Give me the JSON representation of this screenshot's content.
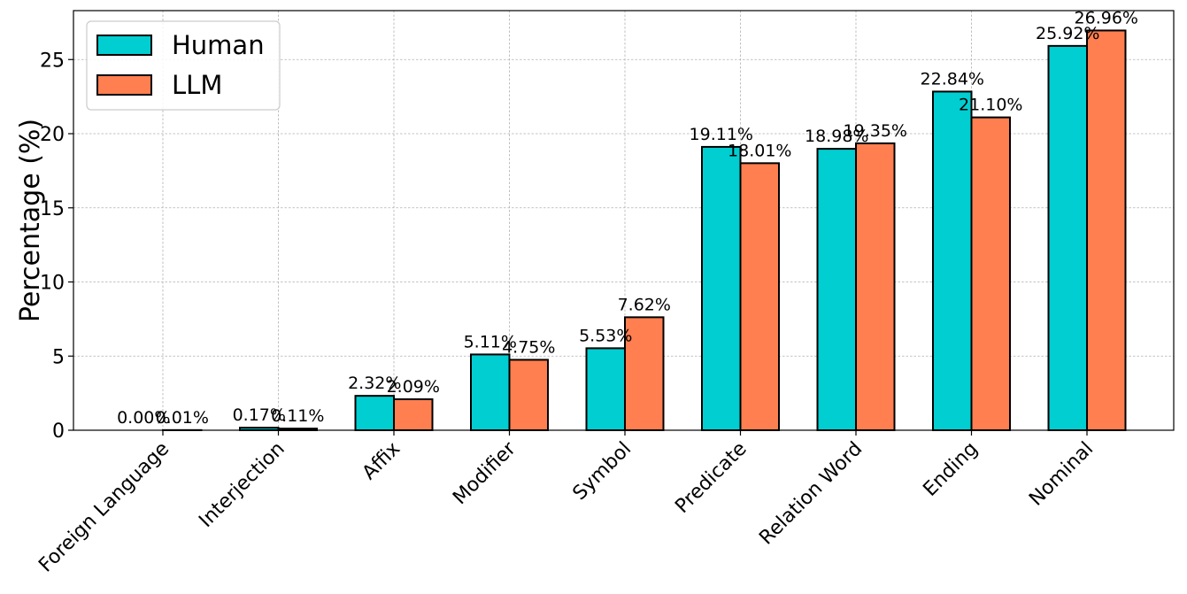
{
  "chart_data": {
    "type": "bar",
    "title": "",
    "xlabel": "",
    "ylabel": "Percentage (%)",
    "ylim": [
      0,
      28.3
    ],
    "yticks": [
      0,
      5,
      10,
      15,
      20,
      25
    ],
    "grid": true,
    "legend_position": "top-left",
    "categories": [
      "Foreign Language",
      "Interjection",
      "Affix",
      "Modifier",
      "Symbol",
      "Predicate",
      "Relation Word",
      "Ending",
      "Nominal"
    ],
    "series": [
      {
        "name": "Human",
        "color": "#00CED1",
        "values": [
          0.0,
          0.17,
          2.32,
          5.11,
          5.53,
          19.11,
          18.98,
          22.84,
          25.92
        ],
        "labels": [
          "0.00%",
          "0.17%",
          "2.32%",
          "5.11%",
          "5.53%",
          "19.11%",
          "18.98%",
          "22.84%",
          "25.92%"
        ]
      },
      {
        "name": "LLM",
        "color": "#FF7F50",
        "values": [
          0.01,
          0.11,
          2.09,
          4.75,
          7.62,
          18.01,
          19.35,
          21.1,
          26.96
        ],
        "labels": [
          "0.01%",
          "0.11%",
          "2.09%",
          "4.75%",
          "7.62%",
          "18.01%",
          "19.35%",
          "21.10%",
          "26.96%"
        ]
      }
    ]
  }
}
